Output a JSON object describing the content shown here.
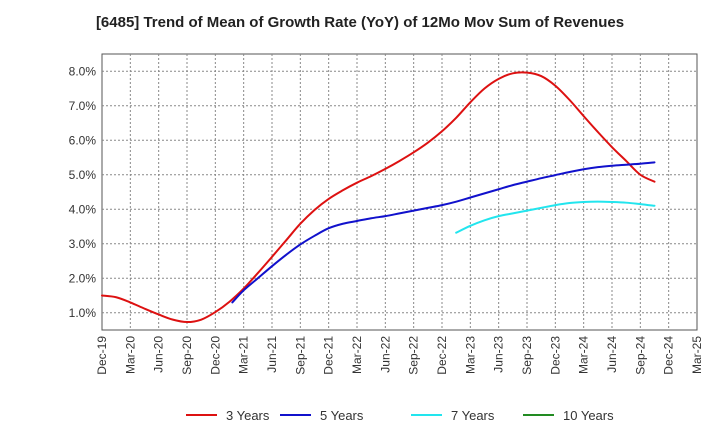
{
  "chart_data": {
    "type": "line",
    "title": "[6485]  Trend of Mean of Growth Rate (YoY) of 12Mo Mov Sum of Revenues",
    "xlabel": "",
    "ylabel": "",
    "grid": true,
    "legend_position": "bottom",
    "ylim": [
      0.5,
      8.5
    ],
    "y_ticks": [
      1.0,
      2.0,
      3.0,
      4.0,
      5.0,
      6.0,
      7.0,
      8.0
    ],
    "y_tick_labels": [
      "1.0%",
      "2.0%",
      "3.0%",
      "4.0%",
      "5.0%",
      "6.0%",
      "7.0%",
      "8.0%"
    ],
    "x_tick_labels": [
      "Dec-19",
      "Mar-20",
      "Jun-20",
      "Sep-20",
      "Dec-20",
      "Mar-21",
      "Jun-21",
      "Sep-21",
      "Dec-21",
      "Mar-22",
      "Jun-22",
      "Sep-22",
      "Dec-22",
      "Mar-23",
      "Jun-23",
      "Sep-23",
      "Dec-23",
      "Mar-24",
      "Jun-24",
      "Sep-24",
      "Dec-24",
      "Mar-25"
    ],
    "series": [
      {
        "name": "3 Years",
        "color": "#dd1111",
        "points": [
          [
            0,
            1.5
          ],
          [
            0.5,
            1.45
          ],
          [
            1,
            1.3
          ],
          [
            1.5,
            1.12
          ],
          [
            2,
            0.95
          ],
          [
            2.5,
            0.8
          ],
          [
            3,
            0.73
          ],
          [
            3.5,
            0.8
          ],
          [
            4,
            1.02
          ],
          [
            4.5,
            1.32
          ],
          [
            5,
            1.7
          ],
          [
            5.5,
            2.15
          ],
          [
            6,
            2.62
          ],
          [
            6.5,
            3.1
          ],
          [
            7,
            3.58
          ],
          [
            7.5,
            3.98
          ],
          [
            8,
            4.3
          ],
          [
            8.5,
            4.55
          ],
          [
            9,
            4.77
          ],
          [
            9.5,
            4.96
          ],
          [
            10,
            5.17
          ],
          [
            10.5,
            5.4
          ],
          [
            11,
            5.65
          ],
          [
            11.5,
            5.93
          ],
          [
            12,
            6.26
          ],
          [
            12.5,
            6.65
          ],
          [
            13,
            7.1
          ],
          [
            13.5,
            7.5
          ],
          [
            14,
            7.78
          ],
          [
            14.5,
            7.94
          ],
          [
            15,
            7.96
          ],
          [
            15.5,
            7.86
          ],
          [
            16,
            7.58
          ],
          [
            16.5,
            7.17
          ],
          [
            17,
            6.7
          ],
          [
            17.5,
            6.24
          ],
          [
            18,
            5.8
          ],
          [
            18.5,
            5.4
          ],
          [
            19,
            5.0
          ],
          [
            19.5,
            4.8
          ]
        ]
      },
      {
        "name": "5 Years",
        "color": "#1111cc",
        "points": [
          [
            4.6,
            1.3
          ],
          [
            5,
            1.65
          ],
          [
            5.5,
            2.0
          ],
          [
            6,
            2.35
          ],
          [
            6.5,
            2.68
          ],
          [
            7,
            2.98
          ],
          [
            7.5,
            3.23
          ],
          [
            8,
            3.45
          ],
          [
            8.5,
            3.58
          ],
          [
            9,
            3.66
          ],
          [
            9.5,
            3.74
          ],
          [
            10,
            3.8
          ],
          [
            10.5,
            3.88
          ],
          [
            11,
            3.96
          ],
          [
            11.5,
            4.04
          ],
          [
            12,
            4.12
          ],
          [
            12.5,
            4.22
          ],
          [
            13,
            4.34
          ],
          [
            13.5,
            4.46
          ],
          [
            14,
            4.58
          ],
          [
            14.5,
            4.7
          ],
          [
            15,
            4.8
          ],
          [
            15.5,
            4.9
          ],
          [
            16,
            4.99
          ],
          [
            16.5,
            5.08
          ],
          [
            17,
            5.16
          ],
          [
            17.5,
            5.22
          ],
          [
            18,
            5.26
          ],
          [
            18.5,
            5.29
          ],
          [
            19,
            5.32
          ],
          [
            19.5,
            5.36
          ]
        ]
      },
      {
        "name": "7 Years",
        "color": "#22e5ee",
        "points": [
          [
            12.5,
            3.32
          ],
          [
            13,
            3.52
          ],
          [
            13.5,
            3.68
          ],
          [
            14,
            3.8
          ],
          [
            14.5,
            3.88
          ],
          [
            15,
            3.96
          ],
          [
            15.5,
            4.04
          ],
          [
            16,
            4.12
          ],
          [
            16.5,
            4.18
          ],
          [
            17,
            4.21
          ],
          [
            17.5,
            4.22
          ],
          [
            18,
            4.21
          ],
          [
            18.5,
            4.19
          ],
          [
            19,
            4.15
          ],
          [
            19.5,
            4.1
          ]
        ]
      },
      {
        "name": "10 Years",
        "color": "#228b22",
        "points": []
      }
    ]
  }
}
